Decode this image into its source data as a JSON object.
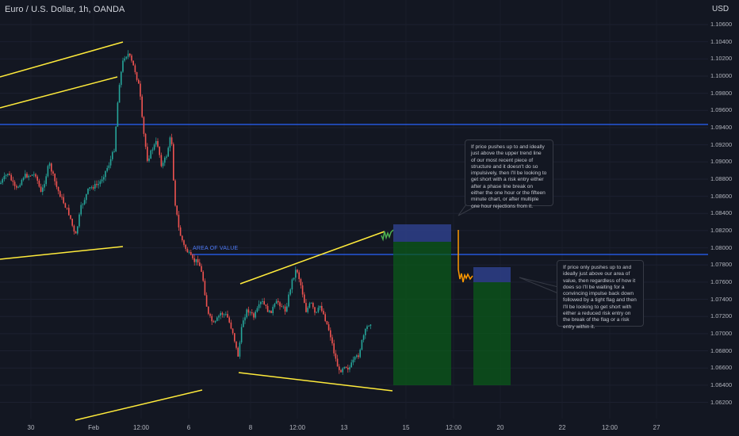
{
  "header": {
    "symbol_title": "Euro / U.S. Dollar, 1h, OANDA",
    "currency": "USD"
  },
  "price_axis": {
    "ticks": [
      "1.10600",
      "1.10400",
      "1.10200",
      "1.10000",
      "1.09800",
      "1.09600",
      "1.09400",
      "1.09200",
      "1.09000",
      "1.08800",
      "1.08600",
      "1.08400",
      "1.08200",
      "1.08000",
      "1.07800",
      "1.07600",
      "1.07400",
      "1.07200",
      "1.07000",
      "1.06800",
      "1.06600",
      "1.06400",
      "1.06200"
    ]
  },
  "time_axis": {
    "ticks": [
      "30",
      "Feb",
      "12:00",
      "6",
      "8",
      "12:00",
      "13",
      "15",
      "12:00",
      "20",
      "22",
      "12:00",
      "27"
    ]
  },
  "annotations": {
    "area_label": "AREA OF VALUE",
    "note_1": "If price pushes up to and ideally just above the upper trend line of our most recent piece of structure and it doesn't do so impulsively, then I'll be looking to get short with a risk entry either after a phase line break on either the one hour or the fifteen minute chart, or after multiple one hour rejections from it.",
    "note_2": "If price only pushes up to and ideally just above our area of value, then regardless of how it does so I'll be waiting for a convincing impulse back down followed by a tight flag and then I'll be looking to get short with either a reduced risk entry on the break of the flag or a risk entry within it."
  },
  "colors": {
    "background": "#131722",
    "bull": "#26a69a",
    "bear": "#ef5350",
    "trendline": "#ffeb3b",
    "horizontal_line": "#2962ff",
    "projection_green": "#0b6b1d",
    "projection_orange": "#ff9800"
  }
}
